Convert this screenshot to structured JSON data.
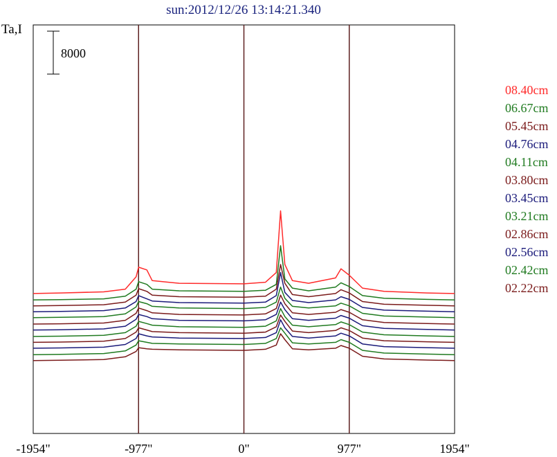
{
  "chart_data": {
    "type": "line",
    "title": "sun:2012/12/26 13:14:21.340",
    "ylabel": "Ta,I",
    "scale_bar_label": "8000",
    "scale_bar_value": 8000,
    "x_ticks": [
      {
        "value": -1954,
        "label": "-1954\""
      },
      {
        "value": -977,
        "label": "-977\""
      },
      {
        "value": 0,
        "label": "0\""
      },
      {
        "value": 977,
        "label": "977\""
      },
      {
        "value": 1954,
        "label": "1954\""
      }
    ],
    "xlim": [
      -1954,
      1954
    ],
    "vertical_lines": [
      {
        "value": -977,
        "color": "#5d2020"
      },
      {
        "value": 0,
        "color": "#5d2020"
      },
      {
        "value": 977,
        "color": "#5d2020"
      }
    ],
    "x": [
      -1954,
      -1700,
      -1300,
      -1100,
      -1000,
      -977,
      -900,
      -850,
      -600,
      0,
      200,
      300,
      340,
      380,
      450,
      600,
      850,
      900,
      977,
      1100,
      1300,
      1700,
      1954
    ],
    "series": [
      {
        "name": "08.40cm",
        "color": "#ff2a2a",
        "baseline": 6600,
        "values": [
          6600,
          6700,
          6900,
          7400,
          9700,
          11500,
          11000,
          9000,
          8500,
          8400,
          8700,
          10500,
          22000,
          12000,
          9000,
          8500,
          9500,
          11200,
          10000,
          7600,
          7000,
          6700,
          6600
        ]
      },
      {
        "name": "06.67cm",
        "color": "#1f7a1f",
        "baseline": 5400,
        "values": [
          5400,
          5450,
          5600,
          6100,
          7400,
          8800,
          8300,
          7400,
          7100,
          7000,
          7200,
          8300,
          15500,
          9300,
          7600,
          7100,
          7800,
          8600,
          7900,
          6200,
          5700,
          5500,
          5400
        ]
      },
      {
        "name": "05.45cm",
        "color": "#7a1a1a",
        "baseline": 4300,
        "values": [
          4300,
          4350,
          4500,
          5000,
          6300,
          7500,
          7000,
          6300,
          6000,
          5900,
          6100,
          7400,
          12000,
          8500,
          6400,
          6000,
          6600,
          7300,
          6700,
          5100,
          4600,
          4400,
          4300
        ]
      },
      {
        "name": "04.76cm",
        "color": "#1a1a7a",
        "baseline": 3200,
        "values": [
          3200,
          3250,
          3400,
          3900,
          5100,
          6200,
          5600,
          5200,
          4900,
          4800,
          5000,
          6200,
          10500,
          6800,
          5300,
          4900,
          5400,
          6000,
          5500,
          4000,
          3500,
          3300,
          3200
        ]
      },
      {
        "name": "04.11cm",
        "color": "#1f7a1f",
        "baseline": 2100,
        "values": [
          2100,
          2150,
          2300,
          2800,
          4100,
          5100,
          4700,
          4200,
          3900,
          3800,
          4000,
          5000,
          7800,
          5700,
          4200,
          3900,
          4300,
          4800,
          4300,
          2900,
          2400,
          2200,
          2100
        ]
      },
      {
        "name": "03.80cm",
        "color": "#7a1a1a",
        "baseline": 900,
        "values": [
          900,
          950,
          1100,
          1600,
          2900,
          3900,
          3400,
          3000,
          2700,
          2600,
          2800,
          3800,
          6300,
          4700,
          3000,
          2700,
          3100,
          3600,
          3100,
          1700,
          1200,
          1000,
          900
        ]
      },
      {
        "name": "03.45cm",
        "color": "#1a1a7a",
        "baseline": -200,
        "values": [
          -200,
          -150,
          0,
          500,
          1800,
          2700,
          2300,
          1900,
          1600,
          1500,
          1700,
          2700,
          5000,
          3600,
          1900,
          1600,
          2000,
          2500,
          2000,
          600,
          100,
          -100,
          -200
        ]
      },
      {
        "name": "03.21cm",
        "color": "#1f7a1f",
        "baseline": -1400,
        "values": [
          -1400,
          -1350,
          -1200,
          -700,
          500,
          1400,
          1000,
          700,
          400,
          300,
          500,
          1500,
          3800,
          2300,
          700,
          400,
          800,
          1300,
          800,
          -600,
          -1100,
          -1300,
          -1400
        ]
      },
      {
        "name": "02.86cm",
        "color": "#7a1a1a",
        "baseline": -2500,
        "values": [
          -2500,
          -2450,
          -2300,
          -1800,
          -600,
          200,
          -200,
          -500,
          -700,
          -800,
          -600,
          400,
          2600,
          1400,
          -400,
          -700,
          -300,
          200,
          -300,
          -1700,
          -2200,
          -2400,
          -2500
        ]
      },
      {
        "name": "02.56cm",
        "color": "#1a1a7a",
        "baseline": -3600,
        "values": [
          -3600,
          -3550,
          -3400,
          -2900,
          -1800,
          -900,
          -1300,
          -1500,
          -1700,
          -1800,
          -1600,
          -700,
          1700,
          200,
          -1400,
          -1700,
          -1300,
          -800,
          -1300,
          -2800,
          -3300,
          -3500,
          -3600
        ]
      },
      {
        "name": "02.42cm",
        "color": "#1f7a1f",
        "baseline": -4800,
        "values": [
          -4800,
          -4750,
          -4600,
          -4100,
          -3000,
          -2200,
          -2500,
          -2700,
          -2800,
          -2900,
          -2700,
          -1800,
          200,
          -800,
          -2600,
          -2800,
          -2500,
          -2000,
          -2500,
          -4000,
          -4500,
          -4700,
          -4800
        ]
      },
      {
        "name": "02.22cm",
        "color": "#7a1a1a",
        "baseline": -5900,
        "values": [
          -5900,
          -5850,
          -5700,
          -5200,
          -4200,
          -3500,
          -3700,
          -3800,
          -3900,
          -4000,
          -3800,
          -3000,
          -900,
          -2000,
          -3700,
          -3900,
          -3600,
          -3100,
          -3600,
          -5100,
          -5600,
          -5800,
          -5900
        ]
      }
    ]
  }
}
